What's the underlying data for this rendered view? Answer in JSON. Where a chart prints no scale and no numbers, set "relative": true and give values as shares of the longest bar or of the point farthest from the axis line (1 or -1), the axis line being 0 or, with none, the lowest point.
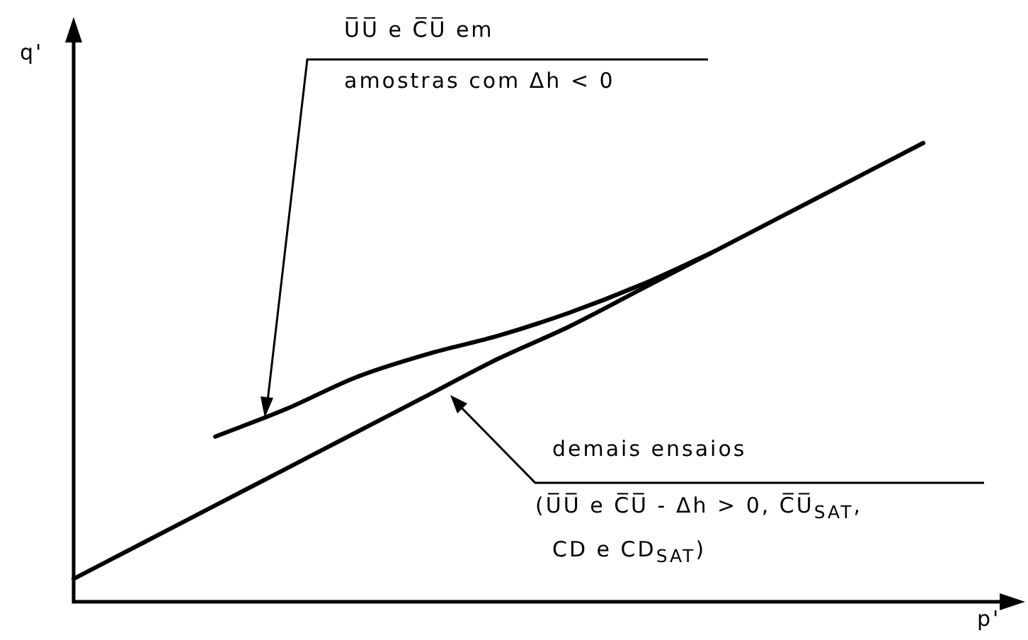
{
  "chart_data": {
    "type": "line",
    "relative": true,
    "xlabel": "p'",
    "ylabel": "q'",
    "categories": [
      null,
      null,
      null,
      null,
      null,
      null,
      null,
      null,
      null,
      null,
      null,
      null,
      null
    ],
    "series": [
      {
        "color": "#000000",
        "values": [
          null,
          null,
          0.36,
          0.42,
          0.49,
          0.54,
          0.58,
          0.63,
          0.69,
          0.76,
          null,
          null,
          null
        ]
      },
      {
        "color": "#000000",
        "values": [
          0.05,
          0.13,
          0.21,
          0.29,
          0.37,
          0.45,
          0.53,
          0.6,
          0.68,
          0.76,
          0.84,
          0.92,
          1
        ]
      }
    ],
    "annotations": [
      "U̅U̅ e C̅U̅ em",
      "amostras com Δh < 0",
      "demais ensaios",
      "(U̅U̅ e C̅U̅ - Δh > 0, C̅U̅$_{SAT}$,",
      "CD e CD$_{SAT}$)"
    ]
  }
}
